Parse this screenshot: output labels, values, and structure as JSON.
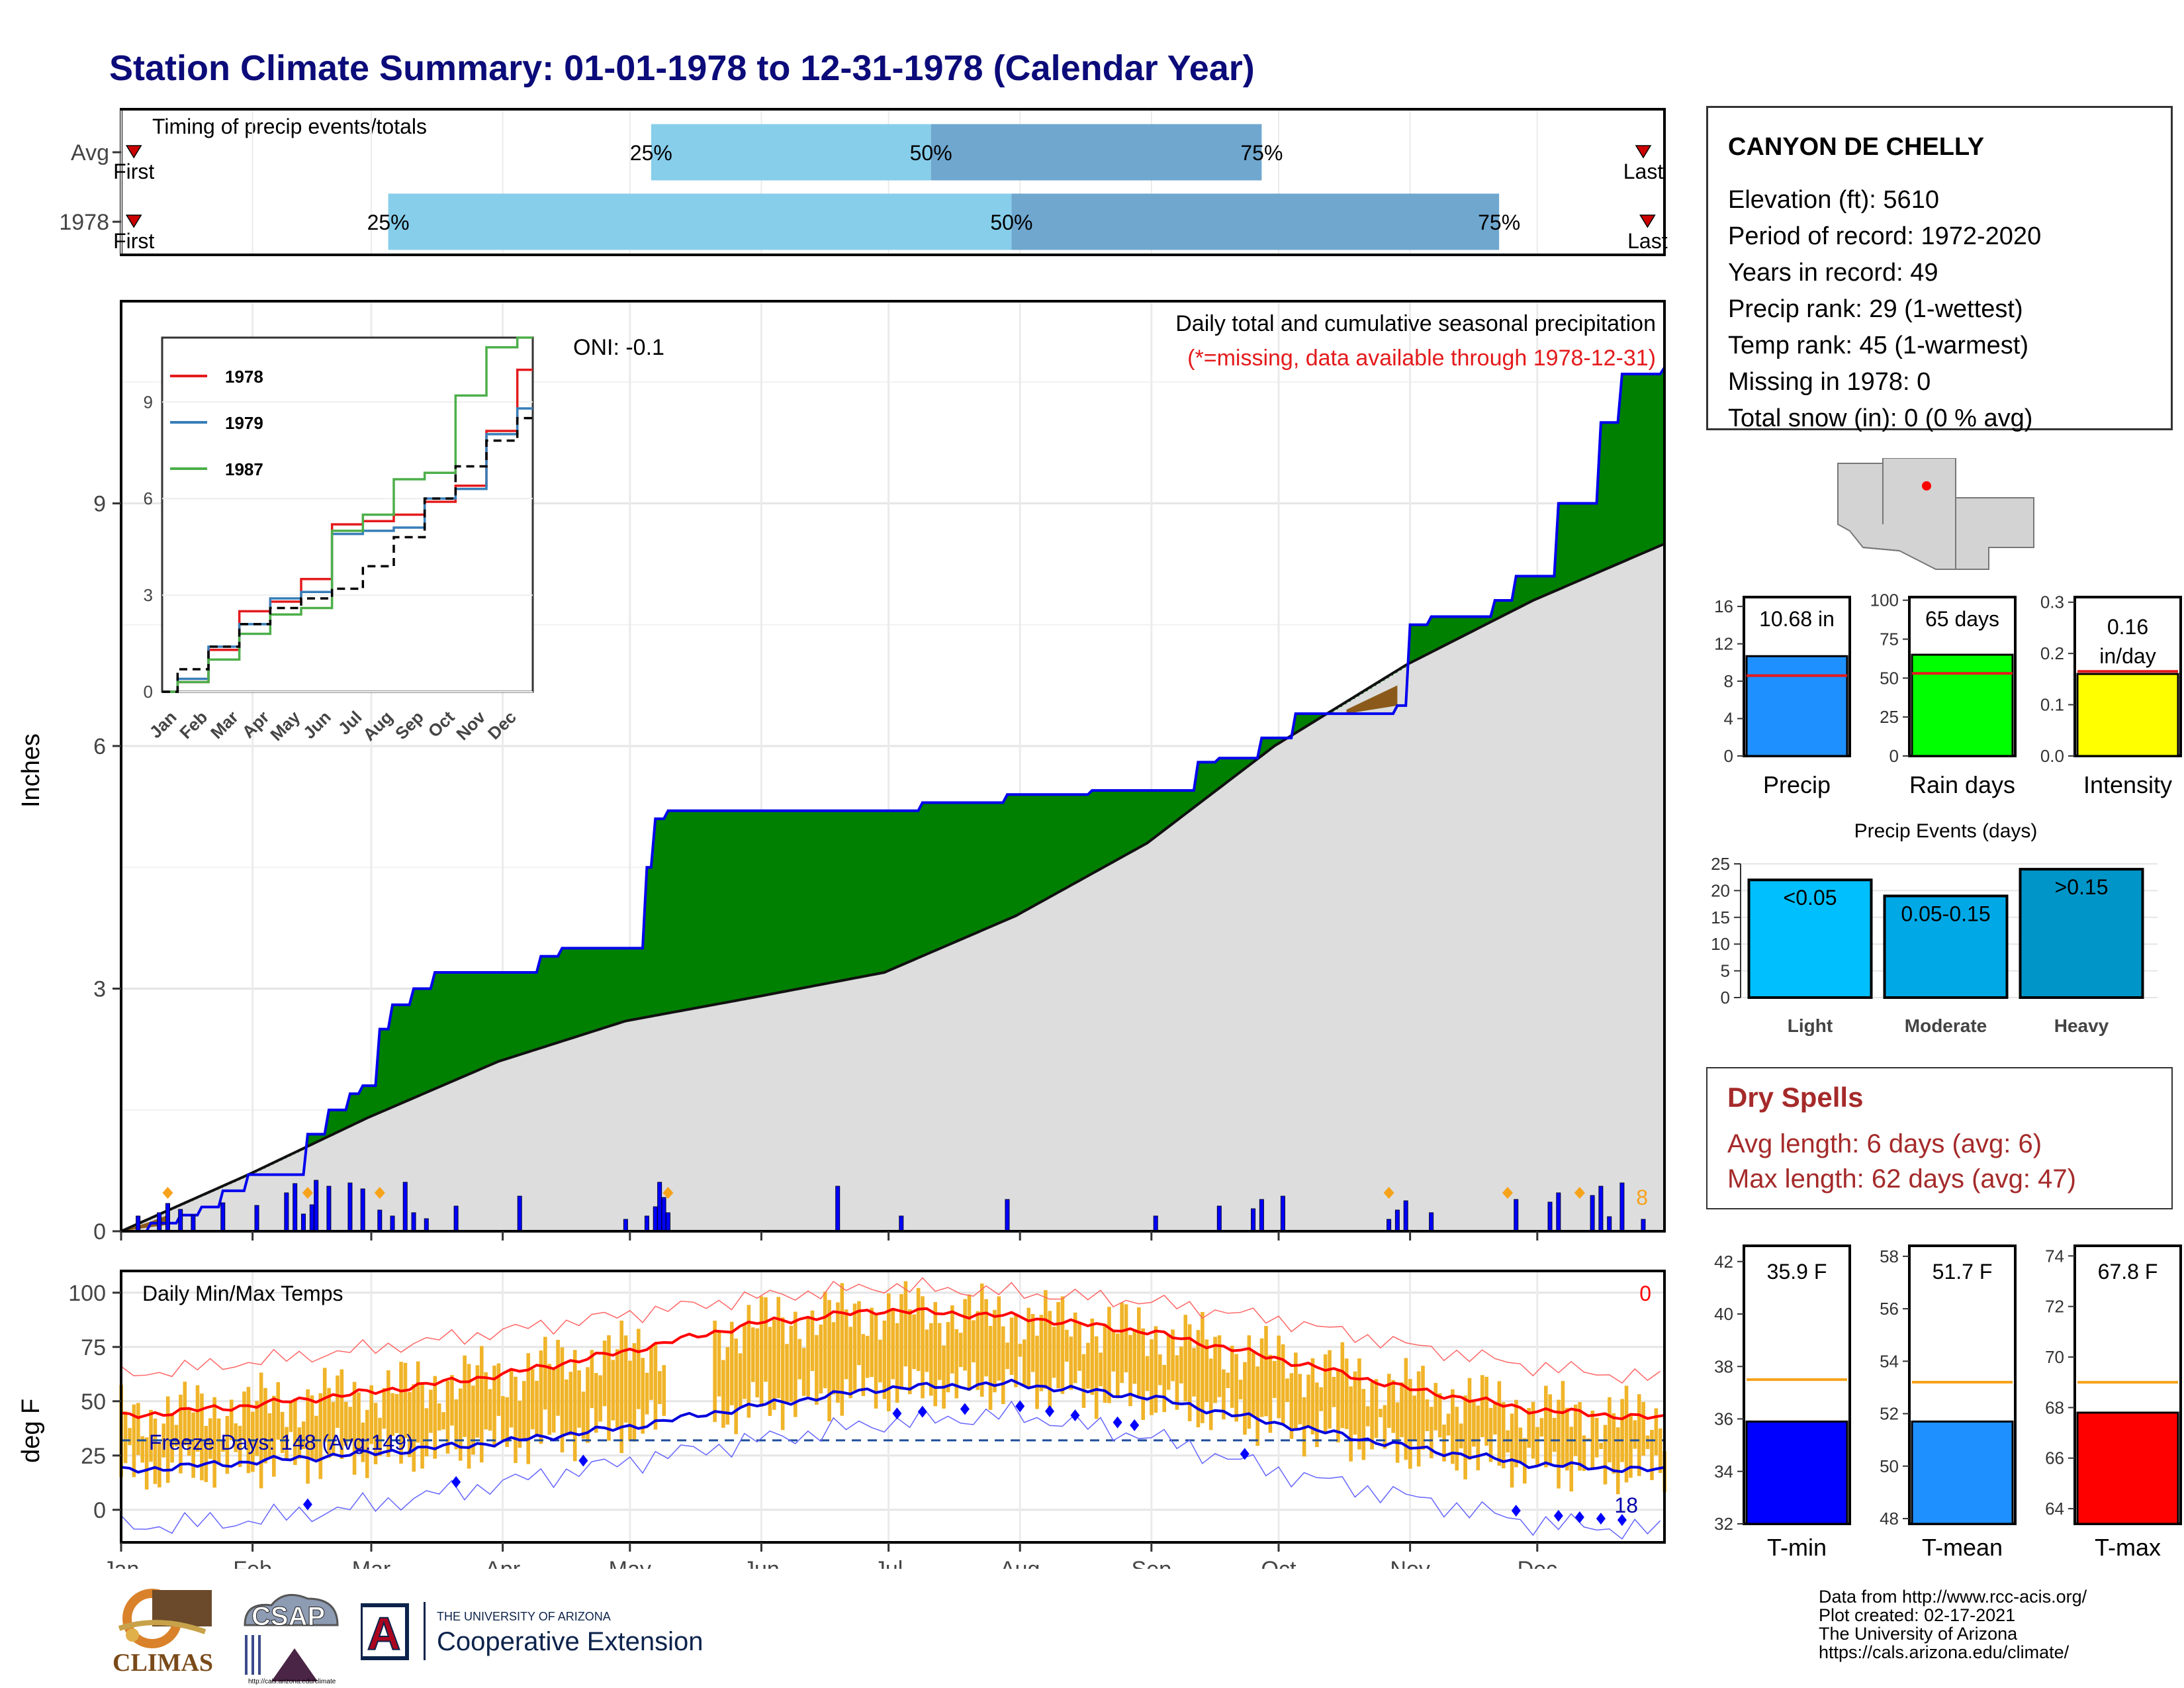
{
  "title": "Station Climate Summary: 01-01-1978 to 12-31-1978 (Calendar Year)",
  "timing": {
    "label": "Timing of precip events/totals",
    "rows": [
      {
        "label": "Avg",
        "first_doy": 4,
        "p25_doy": 126,
        "p50_doy": 192,
        "p75_doy": 270,
        "last_doy": 360
      },
      {
        "label": "1978",
        "first_doy": 4,
        "p25_doy": 64,
        "p50_doy": 211,
        "p75_doy": 326,
        "last_doy": 361
      }
    ],
    "first_label": "First",
    "last_label": "Last",
    "p25_label": "25%",
    "p50_label": "50%",
    "p75_label": "75%"
  },
  "main": {
    "ylabel": "Inches",
    "yticks": [
      "0",
      "3",
      "6",
      "9"
    ],
    "header": "Daily total and cumulative seasonal precipitation",
    "missing_note": "(*=missing, data available through 1978-12-31)",
    "oni": "ONI: -0.1",
    "event_count": "8",
    "months": [
      "Jan",
      "Feb",
      "Mar",
      "Apr",
      "May",
      "Jun",
      "Jul",
      "Aug",
      "Sep",
      "Oct",
      "Nov",
      "Dec"
    ]
  },
  "chart_data": [
    {
      "type": "area",
      "title": "Daily total and cumulative seasonal precipitation",
      "ylabel": "Inches",
      "ylim": [
        0,
        11.5
      ],
      "series": [
        {
          "name": "1978",
          "x_doy": [
            1,
            8,
            15,
            20,
            25,
            31,
            45,
            50,
            55,
            58,
            59,
            62,
            65,
            70,
            75,
            85,
            100,
            105,
            118,
            125,
            127,
            130,
            150,
            185,
            190,
            200,
            210,
            230,
            255,
            260,
            270,
            278,
            290,
            302,
            305,
            310,
            325,
            330,
            340,
            350,
            355,
            365
          ],
          "values": [
            0,
            0.1,
            0.2,
            0.3,
            0.5,
            0.7,
            1.2,
            1.5,
            1.7,
            1.8,
            1.8,
            2.5,
            2.8,
            3.0,
            3.2,
            3.2,
            3.4,
            3.5,
            3.5,
            4.5,
            5.1,
            5.2,
            5.2,
            5.2,
            5.3,
            5.3,
            5.4,
            5.45,
            5.8,
            5.85,
            6.1,
            6.4,
            6.4,
            6.5,
            7.5,
            7.6,
            7.8,
            8.1,
            9.0,
            10.0,
            10.6,
            10.68
          ]
        },
        {
          "name": "Avg",
          "x_doy": [
            1,
            31,
            59,
            90,
            120,
            151,
            181,
            212,
            243,
            273,
            304,
            334,
            365
          ],
          "values": [
            0,
            0.7,
            1.4,
            2.1,
            2.6,
            2.9,
            3.2,
            3.9,
            4.8,
            6.0,
            7.0,
            7.8,
            8.5
          ]
        }
      ],
      "daily_event_days": [
        5,
        10,
        12,
        15,
        18,
        25,
        33,
        40,
        42,
        44,
        46,
        47,
        50,
        55,
        58,
        62,
        65,
        68,
        70,
        73,
        80,
        95,
        120,
        125,
        127,
        128,
        129,
        130,
        170,
        185,
        210,
        245,
        260,
        268,
        270,
        275,
        300,
        302,
        304,
        310,
        330,
        338,
        340,
        348,
        350,
        352,
        355,
        360
      ]
    },
    {
      "type": "line",
      "title": "",
      "xlabel": "",
      "ylabel": "",
      "categories": [
        "Jan",
        "Feb",
        "Mar",
        "Apr",
        "May",
        "Jun",
        "Jul",
        "Aug",
        "Sep",
        "Oct",
        "Nov",
        "Dec"
      ],
      "ylim": [
        0,
        11
      ],
      "series": [
        {
          "name": "1978",
          "values": [
            0.3,
            1.3,
            2.5,
            2.8,
            3.5,
            5.2,
            5.3,
            5.5,
            5.9,
            6.4,
            8.1,
            10.0
          ]
        },
        {
          "name": "1979",
          "values": [
            0.4,
            1.4,
            2.1,
            2.9,
            3.1,
            4.9,
            5.0,
            5.1,
            6.0,
            6.3,
            8.0,
            8.8
          ]
        },
        {
          "name": "1987",
          "values": [
            0.3,
            1.0,
            1.8,
            2.4,
            2.6,
            5.0,
            5.5,
            6.6,
            6.8,
            9.2,
            10.7,
            11.0
          ]
        },
        {
          "name": "Avg",
          "values": [
            0.7,
            1.4,
            2.1,
            2.6,
            2.9,
            3.2,
            3.9,
            4.8,
            6.0,
            7.0,
            7.8,
            8.5
          ]
        }
      ]
    },
    {
      "type": "line",
      "title": "Daily Min/Max Temps",
      "ylabel": "deg F",
      "ylim": [
        -15,
        110
      ],
      "series": [
        {
          "name": "Avg max",
          "x_doy": [
            1,
            31,
            59,
            90,
            120,
            151,
            181,
            212,
            243,
            273,
            304,
            334,
            365
          ],
          "values": [
            43,
            48,
            54,
            62,
            73,
            86,
            92,
            89,
            82,
            70,
            56,
            46,
            42
          ]
        },
        {
          "name": "Avg min",
          "x_doy": [
            1,
            31,
            59,
            90,
            120,
            151,
            181,
            212,
            243,
            273,
            304,
            334,
            365
          ],
          "values": [
            18,
            22,
            26,
            31,
            38,
            48,
            56,
            58,
            52,
            40,
            29,
            21,
            18
          ]
        },
        {
          "name": "Record max",
          "x_doy": [
            1,
            31,
            59,
            90,
            120,
            151,
            181,
            212,
            243,
            273,
            304,
            334,
            365
          ],
          "values": [
            62,
            68,
            74,
            82,
            90,
            98,
            103,
            100,
            96,
            88,
            76,
            66,
            60
          ]
        },
        {
          "name": "Record min",
          "x_doy": [
            1,
            31,
            59,
            90,
            120,
            151,
            181,
            212,
            243,
            273,
            304,
            334,
            365
          ],
          "values": [
            -8,
            -5,
            2,
            12,
            22,
            32,
            40,
            44,
            34,
            18,
            6,
            -6,
            -10
          ]
        }
      ],
      "freeze_label": "Freeze Days: 148 (Avg:149)",
      "freeze_line": 32,
      "count_high": "0",
      "count_low": "18"
    },
    {
      "type": "bar",
      "title": "",
      "categories": [
        "Precip"
      ],
      "values": [
        10.68
      ],
      "avg": 8.6,
      "ylim": [
        0,
        17
      ],
      "label": "10.68 in",
      "yticks": [
        "0",
        "4",
        "8",
        "12",
        "16"
      ]
    },
    {
      "type": "bar",
      "categories": [
        "Rain days"
      ],
      "values": [
        65
      ],
      "avg": 53,
      "ylim": [
        0,
        102
      ],
      "label": "65 days",
      "yticks": [
        "0",
        "25",
        "50",
        "75",
        "100"
      ]
    },
    {
      "type": "bar",
      "categories": [
        "Intensity"
      ],
      "values": [
        0.16
      ],
      "avg": 0.165,
      "ylim": [
        0,
        0.31
      ],
      "label_a": "0.16",
      "label_b": "in/day",
      "yticks": [
        "0.0",
        "0.1",
        "0.2",
        "0.3"
      ]
    },
    {
      "type": "bar",
      "title": "Precip Events (days)",
      "categories": [
        "Light",
        "Moderate",
        "Heavy"
      ],
      "values": [
        22,
        19,
        24
      ],
      "bar_labels": [
        "<0.05",
        "0.05-0.15",
        ">0.15"
      ],
      "ylim": [
        0,
        25
      ],
      "yticks": [
        "0",
        "5",
        "10",
        "15",
        "20",
        "25"
      ]
    },
    {
      "type": "bar",
      "categories": [
        "T-min"
      ],
      "values": [
        35.9
      ],
      "avg": 37.5,
      "ylim": [
        32,
        42.6
      ],
      "label": "35.9 F",
      "yticks": [
        "32",
        "34",
        "36",
        "38",
        "40",
        "42"
      ]
    },
    {
      "type": "bar",
      "categories": [
        "T-mean"
      ],
      "values": [
        51.7
      ],
      "avg": 53.2,
      "ylim": [
        47.8,
        58.4
      ],
      "label": "51.7 F",
      "yticks": [
        "48",
        "50",
        "52",
        "54",
        "56",
        "58"
      ]
    },
    {
      "type": "bar",
      "categories": [
        "T-max"
      ],
      "values": [
        67.8
      ],
      "avg": 69.0,
      "ylim": [
        63.4,
        74.4
      ],
      "label": "67.8 F",
      "yticks": [
        "64",
        "66",
        "68",
        "70",
        "72",
        "74"
      ]
    }
  ],
  "station": {
    "name": "CANYON DE CHELLY",
    "lines": [
      "Elevation (ft): 5610",
      "Period of record: 1972-2020",
      "Years in record: 49",
      "Precip rank: 29 (1-wettest)",
      "Temp rank: 45 (1-warmest)",
      "Missing in 1978: 0",
      "Total snow (in): 0 (0 % avg)"
    ]
  },
  "dry_spells": {
    "title": "Dry Spells",
    "avg": "Avg length: 6 days (avg: 6)",
    "max": "Max length: 62 days (avg: 47)"
  },
  "footer": [
    "Data from http://www.rcc-acis.org/",
    "Plot created: 02-17-2021",
    "The University of Arizona",
    "https://cals.arizona.edu/climate/"
  ],
  "logos": {
    "climas": "CLIMAS",
    "csap": "CSAP",
    "csap_url": "http://cals.arizona.edu/climate",
    "ua_small": "THE UNIVERSITY OF ARIZONA",
    "ua_ext": "Cooperative Extension",
    "ua_mark": "A"
  },
  "colors": {
    "title": "#0b0b7a",
    "surplus": "#008000",
    "deficit": "#8b5a1a",
    "avg_fill": "#dddddd",
    "line_1978": "#e41a1c",
    "line_1979": "#377eb8",
    "line_1987": "#4daf4a",
    "light_blue": "#87ceeb",
    "mid_blue": "#6fa7cf",
    "temp_bar": "#f0b429",
    "precip_bar": "#1e90ff",
    "rain_bar": "#00ff00",
    "intensity_bar": "#ffff00",
    "tmin_bar": "#0000ff",
    "tmean_bar": "#1e90ff",
    "tmax_bar": "#ff0000",
    "dry_text": "#a52a2a"
  }
}
